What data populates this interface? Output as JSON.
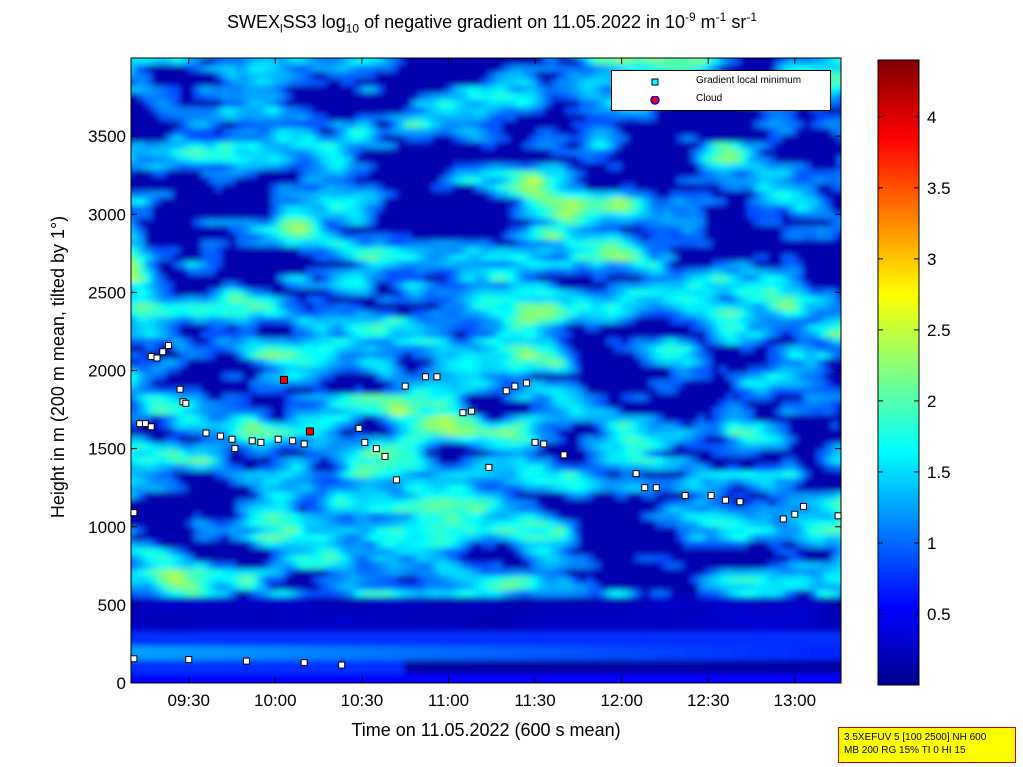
{
  "title": {
    "prefix": "SWEX",
    "sub1": "l",
    "mid": "SS3 log",
    "sub2": "10",
    "main": " of negative gradient on 11.05.2022 in 10",
    "sup1": "-9",
    "unit1": " m",
    "sup2": "-1",
    "unit2": " sr",
    "sup3": "-1"
  },
  "legend": {
    "items": [
      {
        "label": "Gradient local minimum",
        "symbol": "square",
        "color": "#00ffff"
      },
      {
        "label": "Cloud",
        "symbol": "circle",
        "color": "#ff0000"
      }
    ]
  },
  "settings_box": {
    "line1": "3.5XEFUV 5 [100 2500] NH 600",
    "line2": "MB 200 RG 15% TI 0 HI 15"
  },
  "chart_data": {
    "type": "heatmap",
    "xlabel": "Time on 11.05.2022 (600 s mean)",
    "ylabel": "Height in m (200 m mean, tilted by 1°)",
    "xlim": [
      "09:10",
      "13:16"
    ],
    "ylim": [
      0,
      4000
    ],
    "x_ticks": [
      "09:30",
      "10:00",
      "10:30",
      "11:00",
      "11:30",
      "12:00",
      "12:30",
      "13:00"
    ],
    "y_ticks": [
      0,
      500,
      1000,
      1500,
      2000,
      2500,
      3000,
      3500
    ],
    "colorbar": {
      "range": [
        0,
        4.4
      ],
      "ticks": [
        "0.5",
        "1",
        "1.5",
        "2",
        "2.5",
        "3",
        "3.5",
        "4"
      ],
      "colormap": "jet"
    },
    "gradient_local_minimum": [
      [
        "09:11",
        1090
      ],
      [
        "09:13",
        1660
      ],
      [
        "09:15",
        1660
      ],
      [
        "09:17",
        1640
      ],
      [
        "09:17",
        2090
      ],
      [
        "09:19",
        2080
      ],
      [
        "09:21",
        2120
      ],
      [
        "09:23",
        2160
      ],
      [
        "09:27",
        1880
      ],
      [
        "09:28",
        1800
      ],
      [
        "09:29",
        1790
      ],
      [
        "09:36",
        1600
      ],
      [
        "09:41",
        1580
      ],
      [
        "09:45",
        1560
      ],
      [
        "09:46",
        1500
      ],
      [
        "09:52",
        1550
      ],
      [
        "09:55",
        1540
      ],
      [
        "10:01",
        1560
      ],
      [
        "10:06",
        1550
      ],
      [
        "10:10",
        1530
      ],
      [
        "10:29",
        1630
      ],
      [
        "10:31",
        1540
      ],
      [
        "10:35",
        1500
      ],
      [
        "10:38",
        1450
      ],
      [
        "10:42",
        1300
      ],
      [
        "10:45",
        1900
      ],
      [
        "10:52",
        1960
      ],
      [
        "10:56",
        1960
      ],
      [
        "11:05",
        1730
      ],
      [
        "11:08",
        1740
      ],
      [
        "11:14",
        1380
      ],
      [
        "11:20",
        1870
      ],
      [
        "11:23",
        1900
      ],
      [
        "11:27",
        1920
      ],
      [
        "11:30",
        1540
      ],
      [
        "11:33",
        1530
      ],
      [
        "11:40",
        1460
      ],
      [
        "12:05",
        1340
      ],
      [
        "12:08",
        1250
      ],
      [
        "12:12",
        1250
      ],
      [
        "12:22",
        1200
      ],
      [
        "12:31",
        1200
      ],
      [
        "12:36",
        1170
      ],
      [
        "12:41",
        1160
      ],
      [
        "12:56",
        1050
      ],
      [
        "13:00",
        1080
      ],
      [
        "13:03",
        1130
      ],
      [
        "13:15",
        1070
      ],
      [
        "09:11",
        155
      ],
      [
        "09:30",
        150
      ],
      [
        "09:50",
        140
      ],
      [
        "10:10",
        130
      ],
      [
        "10:23",
        115
      ]
    ],
    "cloud": [
      [
        "10:03",
        1940
      ],
      [
        "10:12",
        1610
      ]
    ]
  }
}
